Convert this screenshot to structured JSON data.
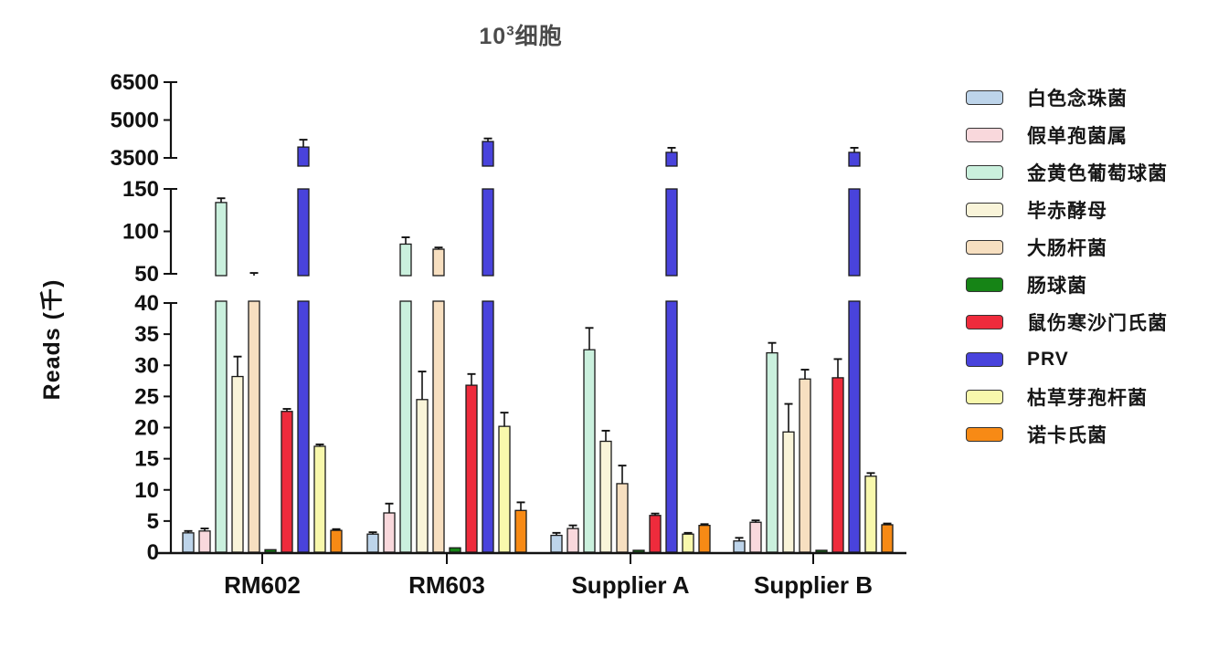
{
  "title": {
    "base": "10",
    "exponent": "3",
    "suffix": "细胞"
  },
  "chart_data": {
    "type": "bar",
    "title": "10^3 细胞",
    "ylabel": "Reads (千)",
    "xlabel": "",
    "grid": false,
    "legend_position": "right",
    "categories": [
      "RM602",
      "RM603",
      "Supplier A",
      "Supplier B"
    ],
    "axis_breaks": true,
    "y_segments": [
      {
        "range": [
          0,
          40
        ],
        "ticks": [
          0,
          5,
          10,
          15,
          20,
          25,
          30,
          35,
          40
        ]
      },
      {
        "range": [
          50,
          150
        ],
        "ticks": [
          50,
          100,
          150
        ]
      },
      {
        "range": [
          3500,
          6500
        ],
        "ticks": [
          3500,
          5000,
          6500
        ]
      }
    ],
    "series": [
      {
        "name": "白色念珠菌",
        "color": "#bdd4ea",
        "values": [
          3.1,
          2.9,
          2.7,
          1.8
        ],
        "errors": [
          0.3,
          0.3,
          0.4,
          0.5
        ]
      },
      {
        "name": "假单孢菌属",
        "color": "#f9d8dc",
        "values": [
          3.4,
          6.3,
          3.8,
          4.8
        ],
        "errors": [
          0.4,
          1.5,
          0.5,
          0.3
        ]
      },
      {
        "name": "金黄色葡萄球菌",
        "color": "#caf0dd",
        "values": [
          134,
          85,
          32.5,
          32
        ],
        "errors": [
          5,
          8,
          3.5,
          1.6
        ]
      },
      {
        "name": "毕赤酵母",
        "color": "#f9f4d9",
        "values": [
          28.2,
          24.5,
          17.8,
          19.3
        ],
        "errors": [
          3.2,
          4.5,
          1.7,
          4.5
        ]
      },
      {
        "name": "大肠杆菌",
        "color": "#f7dfc0",
        "values": [
          48,
          79,
          11,
          27.8
        ],
        "errors": [
          3,
          2,
          2.9,
          1.5
        ]
      },
      {
        "name": "肠球菌",
        "color": "#168416",
        "values": [
          0.4,
          0.7,
          0.3,
          0.3
        ],
        "errors": [
          0,
          0,
          0,
          0
        ]
      },
      {
        "name": "鼠伤寒沙门氏菌",
        "color": "#ee2b3c",
        "values": [
          22.6,
          26.8,
          5.9,
          28
        ],
        "errors": [
          0.4,
          1.8,
          0.3,
          3
        ]
      },
      {
        "name": "PRV",
        "color": "#4943dc",
        "values": [
          3930,
          4150,
          3720,
          3720
        ],
        "errors": [
          290,
          120,
          180,
          180
        ]
      },
      {
        "name": "枯草芽孢杆菌",
        "color": "#f8f8ac",
        "values": [
          17,
          20.2,
          2.9,
          12.2
        ],
        "errors": [
          0.3,
          2.2,
          0.2,
          0.5
        ]
      },
      {
        "name": "诺卡氏菌",
        "color": "#f78a15",
        "values": [
          3.5,
          6.7,
          4.3,
          4.4
        ],
        "errors": [
          0.2,
          1.3,
          0.2,
          0.2
        ]
      }
    ]
  }
}
